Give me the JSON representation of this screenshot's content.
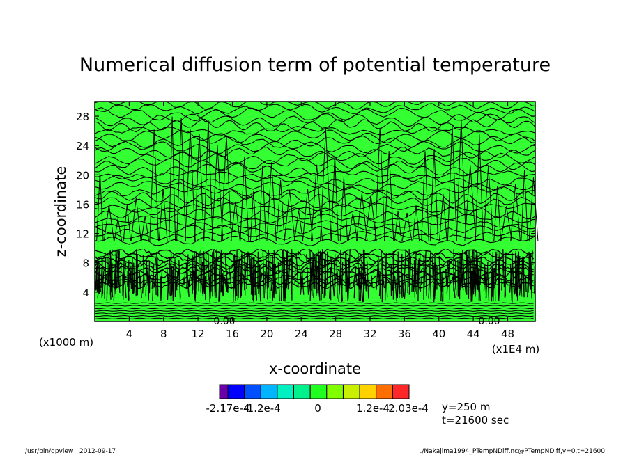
{
  "chart_data": {
    "type": "heatmap",
    "title": "Numerical diffusion term of potential temperature",
    "xlabel": "x-coordinate",
    "ylabel": "z-coordinate",
    "x_unit_label": "(x1E4 m)",
    "y_unit_label": "(x1000 m)",
    "xlim": [
      0,
      51.2
    ],
    "ylim": [
      0,
      30
    ],
    "x_ticks": [
      "4",
      "8",
      "12",
      "16",
      "20",
      "24",
      "28",
      "32",
      "36",
      "40",
      "44",
      "48"
    ],
    "y_ticks": [
      "4",
      "8",
      "12",
      "16",
      "20",
      "24",
      "28"
    ],
    "inplot_labels": [
      "0.00",
      "0.00"
    ],
    "colorbar": {
      "colors": [
        "#6a00aa",
        "#0000ff",
        "#0050ff",
        "#00b4ff",
        "#00f0c0",
        "#00f08c",
        "#20ff20",
        "#80ff00",
        "#c8f000",
        "#ffd200",
        "#ff6e00",
        "#ff2828"
      ],
      "labels": [
        "-2.17e-4",
        "-1.2e-4",
        "0",
        "1.2e-4",
        "2.03e-4"
      ]
    },
    "dominant_color": "#33ff33",
    "annotations": [
      "y=250 m",
      "t=21600 sec"
    ]
  },
  "footer": {
    "left": "/usr/bin/gpview   2012-09-17",
    "right": "./Nakajima1994_PTempNDiff.nc@PTempNDiff,y=0,t=21600"
  }
}
